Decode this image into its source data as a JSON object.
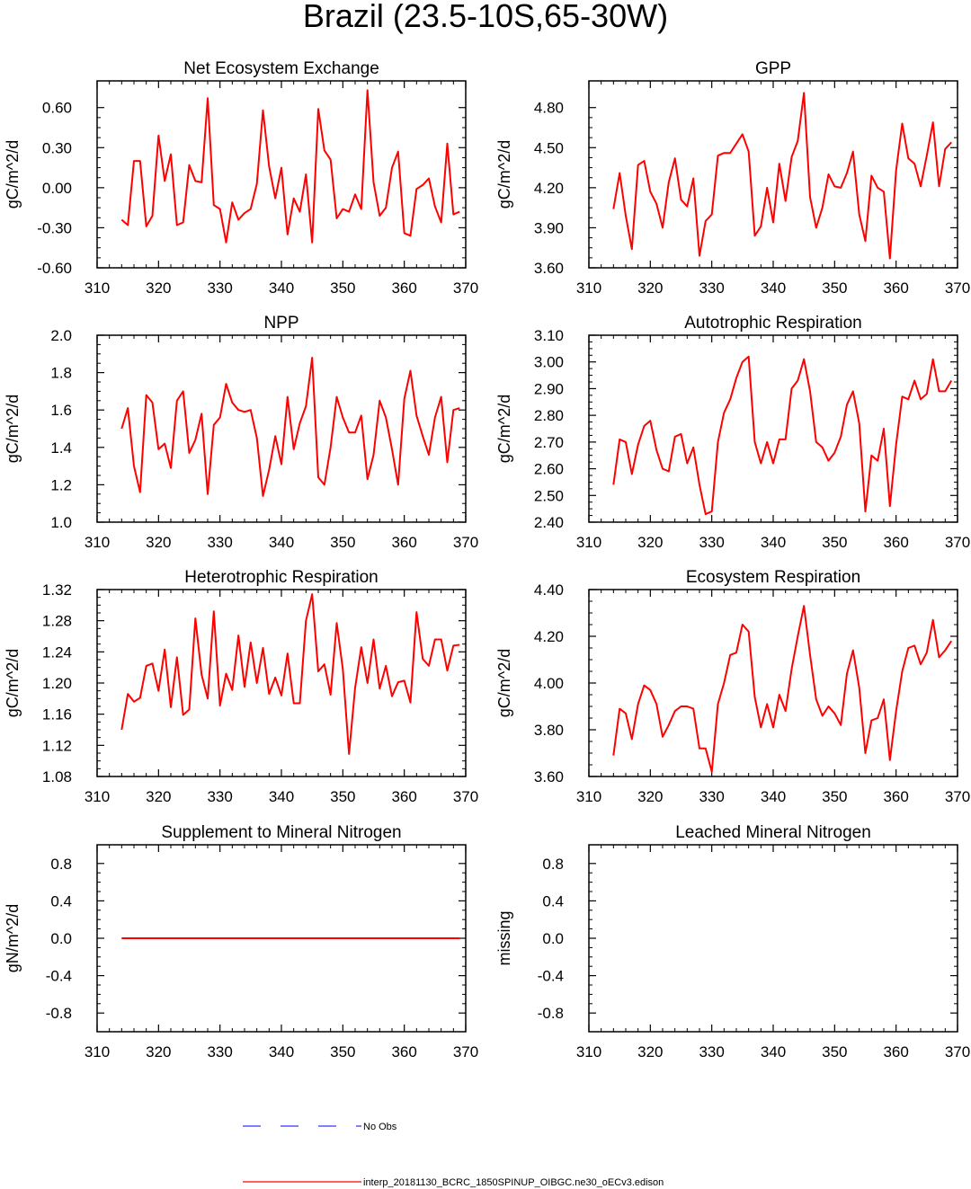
{
  "figure": {
    "title": "Brazil (23.5-10S,65-30W)"
  },
  "legend": [
    {
      "label": "No Obs",
      "color": "#3333ff",
      "dash": "dashed"
    },
    {
      "label": "interp_20181130_BCRC_1850SPINUP_OIBGC.ne30_oECv3.edison",
      "color": "#ff0000",
      "dash": "solid"
    }
  ],
  "colors": {
    "series": "#ff0000",
    "axes": "#000000",
    "no_obs": "#3333ff"
  },
  "chart_data": [
    {
      "type": "line",
      "title": "Net Ecosystem Exchange",
      "ylabel": "gC/m^2/d",
      "xlim": [
        310,
        370
      ],
      "ylim": [
        -0.6,
        0.8
      ],
      "xticks": [
        "310",
        "320",
        "330",
        "340",
        "350",
        "360",
        "370"
      ],
      "xtick_values": [
        310,
        320,
        330,
        340,
        350,
        360,
        370
      ],
      "yticks": [
        "-0.60",
        "-0.30",
        "0.00",
        "0.30",
        "0.60"
      ],
      "ytick_values": [
        -0.6,
        -0.3,
        0.0,
        0.3,
        0.6
      ],
      "series": [
        {
          "name": "interp_20181130_BCRC_1850SPINUP_OIBGC.ne30_oECv3.edison",
          "x": [
            314,
            315,
            316,
            317,
            318,
            319,
            320,
            321,
            322,
            323,
            324,
            325,
            326,
            327,
            328,
            329,
            330,
            331,
            332,
            333,
            334,
            335,
            336,
            337,
            338,
            339,
            340,
            341,
            342,
            343,
            344,
            345,
            346,
            347,
            348,
            349,
            350,
            351,
            352,
            353,
            354,
            355,
            356,
            357,
            358,
            359,
            360,
            361,
            362,
            363,
            364,
            365,
            366,
            367,
            368,
            369
          ],
          "values": [
            -0.24,
            -0.28,
            0.2,
            0.2,
            -0.29,
            -0.21,
            0.39,
            0.05,
            0.25,
            -0.28,
            -0.26,
            0.17,
            0.05,
            0.04,
            0.67,
            -0.13,
            -0.16,
            -0.41,
            -0.11,
            -0.24,
            -0.19,
            -0.16,
            0.03,
            0.58,
            0.16,
            -0.08,
            0.15,
            -0.35,
            -0.08,
            -0.18,
            0.1,
            -0.41,
            0.59,
            0.28,
            0.21,
            -0.23,
            -0.16,
            -0.18,
            -0.05,
            -0.16,
            0.73,
            0.04,
            -0.21,
            -0.15,
            0.15,
            0.27,
            -0.34,
            -0.36,
            -0.01,
            0.02,
            0.07,
            -0.14,
            -0.26,
            0.33,
            -0.2,
            -0.18
          ]
        }
      ]
    },
    {
      "type": "line",
      "title": "GPP",
      "ylabel": "gC/m^2/d",
      "xlim": [
        310,
        370
      ],
      "ylim": [
        3.6,
        5.0
      ],
      "xticks": [
        "310",
        "320",
        "330",
        "340",
        "350",
        "360",
        "370"
      ],
      "xtick_values": [
        310,
        320,
        330,
        340,
        350,
        360,
        370
      ],
      "yticks": [
        "3.60",
        "3.90",
        "4.20",
        "4.50",
        "4.80"
      ],
      "ytick_values": [
        3.6,
        3.9,
        4.2,
        4.5,
        4.8
      ],
      "series": [
        {
          "name": "interp_20181130_BCRC_1850SPINUP_OIBGC.ne30_oECv3.edison",
          "x": [
            314,
            315,
            316,
            317,
            318,
            319,
            320,
            321,
            322,
            323,
            324,
            325,
            326,
            327,
            328,
            329,
            330,
            331,
            332,
            333,
            334,
            335,
            336,
            337,
            338,
            339,
            340,
            341,
            342,
            343,
            344,
            345,
            346,
            347,
            348,
            349,
            350,
            351,
            352,
            353,
            354,
            355,
            356,
            357,
            358,
            359,
            360,
            361,
            362,
            363,
            364,
            365,
            366,
            367,
            368,
            369
          ],
          "values": [
            4.04,
            4.31,
            3.99,
            3.74,
            4.37,
            4.4,
            4.17,
            4.08,
            3.9,
            4.24,
            4.42,
            4.11,
            4.06,
            4.27,
            3.69,
            3.95,
            4.0,
            4.44,
            4.46,
            4.46,
            4.53,
            4.6,
            4.47,
            3.84,
            3.91,
            4.2,
            3.94,
            4.38,
            4.1,
            4.43,
            4.55,
            4.91,
            4.13,
            3.9,
            4.05,
            4.3,
            4.21,
            4.2,
            4.31,
            4.47,
            4.0,
            3.8,
            4.29,
            4.2,
            4.17,
            3.67,
            4.33,
            4.68,
            4.42,
            4.38,
            4.21,
            4.44,
            4.69,
            4.21,
            4.49,
            4.54
          ]
        }
      ]
    },
    {
      "type": "line",
      "title": "NPP",
      "ylabel": "gC/m^2/d",
      "xlim": [
        310,
        370
      ],
      "ylim": [
        1.0,
        2.0
      ],
      "xticks": [
        "310",
        "320",
        "330",
        "340",
        "350",
        "360",
        "370"
      ],
      "xtick_values": [
        310,
        320,
        330,
        340,
        350,
        360,
        370
      ],
      "yticks": [
        "1.0",
        "1.2",
        "1.4",
        "1.6",
        "1.8",
        "2.0"
      ],
      "ytick_values": [
        1.0,
        1.2,
        1.4,
        1.6,
        1.8,
        2.0
      ],
      "series": [
        {
          "name": "interp_20181130_BCRC_1850SPINUP_OIBGC.ne30_oECv3.edison",
          "x": [
            314,
            315,
            316,
            317,
            318,
            319,
            320,
            321,
            322,
            323,
            324,
            325,
            326,
            327,
            328,
            329,
            330,
            331,
            332,
            333,
            334,
            335,
            336,
            337,
            338,
            339,
            340,
            341,
            342,
            343,
            344,
            345,
            346,
            347,
            348,
            349,
            350,
            351,
            352,
            353,
            354,
            355,
            356,
            357,
            358,
            359,
            360,
            361,
            362,
            363,
            364,
            365,
            366,
            367,
            368,
            369
          ],
          "values": [
            1.5,
            1.61,
            1.3,
            1.16,
            1.68,
            1.64,
            1.39,
            1.42,
            1.29,
            1.65,
            1.7,
            1.37,
            1.44,
            1.58,
            1.15,
            1.52,
            1.56,
            1.74,
            1.64,
            1.6,
            1.59,
            1.6,
            1.45,
            1.14,
            1.28,
            1.46,
            1.31,
            1.67,
            1.39,
            1.53,
            1.62,
            1.88,
            1.24,
            1.2,
            1.4,
            1.67,
            1.56,
            1.48,
            1.48,
            1.57,
            1.23,
            1.36,
            1.65,
            1.56,
            1.39,
            1.2,
            1.66,
            1.81,
            1.57,
            1.46,
            1.36,
            1.56,
            1.67,
            1.32,
            1.6,
            1.61
          ]
        }
      ]
    },
    {
      "type": "line",
      "title": "Autotrophic Respiration",
      "ylabel": "gC/m^2/d",
      "xlim": [
        310,
        370
      ],
      "ylim": [
        2.4,
        3.1
      ],
      "xticks": [
        "310",
        "320",
        "330",
        "340",
        "350",
        "360",
        "370"
      ],
      "xtick_values": [
        310,
        320,
        330,
        340,
        350,
        360,
        370
      ],
      "yticks": [
        "2.40",
        "2.50",
        "2.60",
        "2.70",
        "2.80",
        "2.90",
        "3.00",
        "3.10"
      ],
      "ytick_values": [
        2.4,
        2.5,
        2.6,
        2.7,
        2.8,
        2.9,
        3.0,
        3.1
      ],
      "series": [
        {
          "name": "interp_20181130_BCRC_1850SPINUP_OIBGC.ne30_oECv3.edison",
          "x": [
            314,
            315,
            316,
            317,
            318,
            319,
            320,
            321,
            322,
            323,
            324,
            325,
            326,
            327,
            328,
            329,
            330,
            331,
            332,
            333,
            334,
            335,
            336,
            337,
            338,
            339,
            340,
            341,
            342,
            343,
            344,
            345,
            346,
            347,
            348,
            349,
            350,
            351,
            352,
            353,
            354,
            355,
            356,
            357,
            358,
            359,
            360,
            361,
            362,
            363,
            364,
            365,
            366,
            367,
            368,
            369
          ],
          "values": [
            2.54,
            2.71,
            2.7,
            2.58,
            2.69,
            2.76,
            2.78,
            2.67,
            2.6,
            2.59,
            2.72,
            2.73,
            2.62,
            2.68,
            2.54,
            2.43,
            2.44,
            2.7,
            2.81,
            2.86,
            2.94,
            3.0,
            3.02,
            2.7,
            2.62,
            2.7,
            2.62,
            2.71,
            2.71,
            2.9,
            2.93,
            3.01,
            2.89,
            2.7,
            2.68,
            2.63,
            2.66,
            2.72,
            2.84,
            2.89,
            2.77,
            2.44,
            2.65,
            2.63,
            2.75,
            2.46,
            2.69,
            2.87,
            2.86,
            2.93,
            2.86,
            2.88,
            3.01,
            2.89,
            2.89,
            2.93
          ]
        }
      ]
    },
    {
      "type": "line",
      "title": "Heterotrophic Respiration",
      "ylabel": "gC/m^2/d",
      "xlim": [
        310,
        370
      ],
      "ylim": [
        1.08,
        1.32
      ],
      "xticks": [
        "310",
        "320",
        "330",
        "340",
        "350",
        "360",
        "370"
      ],
      "xtick_values": [
        310,
        320,
        330,
        340,
        350,
        360,
        370
      ],
      "yticks": [
        "1.08",
        "1.12",
        "1.16",
        "1.20",
        "1.24",
        "1.28",
        "1.32"
      ],
      "ytick_values": [
        1.08,
        1.12,
        1.16,
        1.2,
        1.24,
        1.28,
        1.32
      ],
      "series": [
        {
          "name": "interp_20181130_BCRC_1850SPINUP_OIBGC.ne30_oECv3.edison",
          "x": [
            314,
            315,
            316,
            317,
            318,
            319,
            320,
            321,
            322,
            323,
            324,
            325,
            326,
            327,
            328,
            329,
            330,
            331,
            332,
            333,
            334,
            335,
            336,
            337,
            338,
            339,
            340,
            341,
            342,
            343,
            344,
            345,
            346,
            347,
            348,
            349,
            350,
            351,
            352,
            353,
            354,
            355,
            356,
            357,
            358,
            359,
            360,
            361,
            362,
            363,
            364,
            365,
            366,
            367,
            368,
            369
          ],
          "values": [
            1.14,
            1.186,
            1.176,
            1.181,
            1.222,
            1.225,
            1.19,
            1.243,
            1.169,
            1.233,
            1.159,
            1.166,
            1.283,
            1.211,
            1.18,
            1.292,
            1.171,
            1.212,
            1.191,
            1.261,
            1.195,
            1.252,
            1.2,
            1.245,
            1.186,
            1.207,
            1.184,
            1.238,
            1.174,
            1.174,
            1.28,
            1.314,
            1.215,
            1.224,
            1.185,
            1.277,
            1.218,
            1.109,
            1.194,
            1.246,
            1.2,
            1.256,
            1.193,
            1.222,
            1.183,
            1.201,
            1.203,
            1.175,
            1.291,
            1.231,
            1.222,
            1.256,
            1.256,
            1.216,
            1.248,
            1.249
          ]
        }
      ]
    },
    {
      "type": "line",
      "title": "Ecosystem Respiration",
      "ylabel": "gC/m^2/d",
      "xlim": [
        310,
        370
      ],
      "ylim": [
        3.6,
        4.4
      ],
      "xticks": [
        "310",
        "320",
        "330",
        "340",
        "350",
        "360",
        "370"
      ],
      "xtick_values": [
        310,
        320,
        330,
        340,
        350,
        360,
        370
      ],
      "yticks": [
        "3.60",
        "3.80",
        "4.00",
        "4.20",
        "4.40"
      ],
      "ytick_values": [
        3.6,
        3.8,
        4.0,
        4.2,
        4.4
      ],
      "series": [
        {
          "name": "interp_20181130_BCRC_1850SPINUP_OIBGC.ne30_oECv3.edison",
          "x": [
            314,
            315,
            316,
            317,
            318,
            319,
            320,
            321,
            322,
            323,
            324,
            325,
            326,
            327,
            328,
            329,
            330,
            331,
            332,
            333,
            334,
            335,
            336,
            337,
            338,
            339,
            340,
            341,
            342,
            343,
            344,
            345,
            346,
            347,
            348,
            349,
            350,
            351,
            352,
            353,
            354,
            355,
            356,
            357,
            358,
            359,
            360,
            361,
            362,
            363,
            364,
            365,
            366,
            367,
            368,
            369
          ],
          "values": [
            3.69,
            3.89,
            3.87,
            3.76,
            3.91,
            3.99,
            3.97,
            3.91,
            3.77,
            3.82,
            3.88,
            3.9,
            3.9,
            3.89,
            3.72,
            3.72,
            3.62,
            3.91,
            4.0,
            4.12,
            4.13,
            4.25,
            4.22,
            3.94,
            3.81,
            3.91,
            3.81,
            3.95,
            3.88,
            4.06,
            4.2,
            4.33,
            4.12,
            3.93,
            3.86,
            3.9,
            3.87,
            3.82,
            4.04,
            4.14,
            3.98,
            3.7,
            3.84,
            3.85,
            3.93,
            3.67,
            3.88,
            4.05,
            4.15,
            4.16,
            4.08,
            4.13,
            4.27,
            4.11,
            4.14,
            4.18
          ]
        }
      ]
    },
    {
      "type": "line",
      "title": "Supplement to Mineral Nitrogen",
      "ylabel": "gN/m^2/d",
      "xlim": [
        310,
        370
      ],
      "ylim": [
        -1.0,
        1.0
      ],
      "xticks": [
        "310",
        "320",
        "330",
        "340",
        "350",
        "360",
        "370"
      ],
      "xtick_values": [
        310,
        320,
        330,
        340,
        350,
        360,
        370
      ],
      "yticks": [
        "-0.8",
        "-0.4",
        "0.0",
        "0.4",
        "0.8"
      ],
      "ytick_values": [
        -0.8,
        -0.4,
        0.0,
        0.4,
        0.8
      ],
      "series": [
        {
          "name": "interp_20181130_BCRC_1850SPINUP_OIBGC.ne30_oECv3.edison",
          "x": [
            314,
            369
          ],
          "values": [
            0.0,
            0.0
          ]
        }
      ]
    },
    {
      "type": "line",
      "title": "Leached Mineral Nitrogen",
      "ylabel": "missing",
      "xlim": [
        310,
        370
      ],
      "ylim": [
        -1.0,
        1.0
      ],
      "xticks": [
        "310",
        "320",
        "330",
        "340",
        "350",
        "360",
        "370"
      ],
      "xtick_values": [
        310,
        320,
        330,
        340,
        350,
        360,
        370
      ],
      "yticks": [
        "-0.8",
        "-0.4",
        "0.0",
        "0.4",
        "0.8"
      ],
      "ytick_values": [
        -0.8,
        -0.4,
        0.0,
        0.4,
        0.8
      ],
      "series": []
    }
  ]
}
